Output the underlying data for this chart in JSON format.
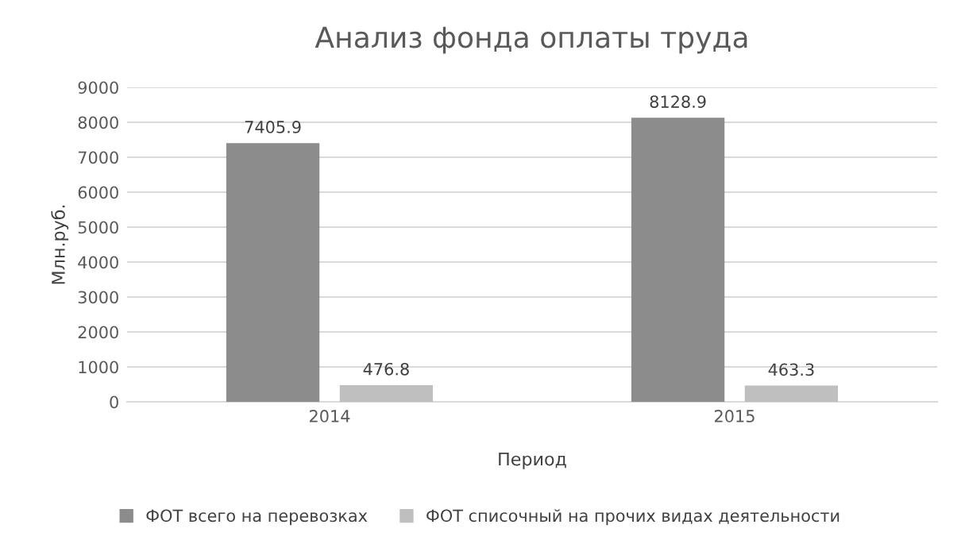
{
  "chart_data": {
    "type": "bar",
    "title": "Анализ фонда оплаты труда",
    "xlabel": "Период",
    "ylabel": "Млн.руб.",
    "categories": [
      "2014",
      "2015"
    ],
    "series": [
      {
        "name": "ФОТ всего на перевозках",
        "color": "#8c8c8c",
        "values": [
          7405.9,
          8128.9
        ]
      },
      {
        "name": "ФОТ списочный на прочих видах деятельности",
        "color": "#bfbfbf",
        "values": [
          476.8,
          463.3
        ]
      }
    ],
    "ylim": [
      0,
      9000
    ],
    "yticks": [
      0,
      1000,
      2000,
      3000,
      4000,
      5000,
      6000,
      7000,
      8000,
      9000
    ],
    "grid": "y",
    "legend": "bottom",
    "data_labels": true
  }
}
